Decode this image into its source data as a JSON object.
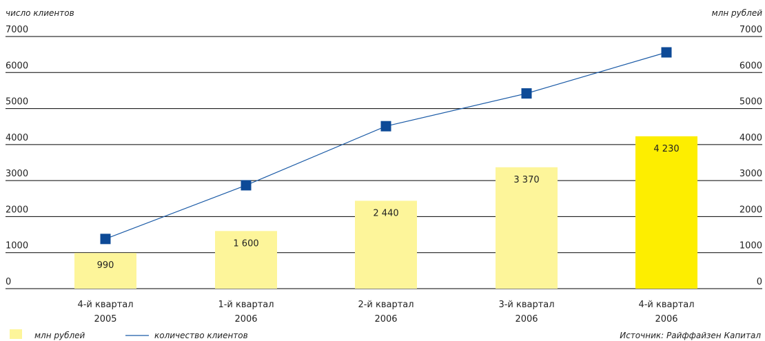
{
  "chart_data": {
    "type": "bar",
    "left_axis_title": "число клиентов",
    "right_axis_title": "млн рублей",
    "y_ticks": [
      "7000",
      "6000",
      "5000",
      "4000",
      "3000",
      "2000",
      "1000",
      "0"
    ],
    "ylim": [
      0,
      7000
    ],
    "grid": true,
    "categories": [
      {
        "line1": "4-й квартал",
        "line2": "2005"
      },
      {
        "line1": "1-й квартал",
        "line2": "2006"
      },
      {
        "line1": "2-й квартал",
        "line2": "2006"
      },
      {
        "line1": "3-й квартал",
        "line2": "2006"
      },
      {
        "line1": "4-й квартал",
        "line2": "2006"
      }
    ],
    "series": [
      {
        "name": "млн рублей",
        "kind": "bar",
        "axis": "right",
        "values": [
          990,
          1600,
          2440,
          3370,
          4230
        ],
        "labels": [
          "990",
          "1 600",
          "2 440",
          "3 370",
          "4 230"
        ],
        "colors": [
          "#fdf59a",
          "#fdf59a",
          "#fdf59a",
          "#fdf59a",
          "#fdee00"
        ]
      },
      {
        "name": "количество клиентов",
        "kind": "line",
        "axis": "left",
        "values": [
          1380,
          2870,
          4510,
          5420,
          6560
        ],
        "color": "#1a5aa6",
        "marker_color": "#0d4a97"
      }
    ],
    "legend": {
      "position": "bottom-left",
      "bar_label": "млн рублей",
      "line_label": "количество клиентов"
    },
    "source": "Источник: Райффайзен Капитал"
  }
}
